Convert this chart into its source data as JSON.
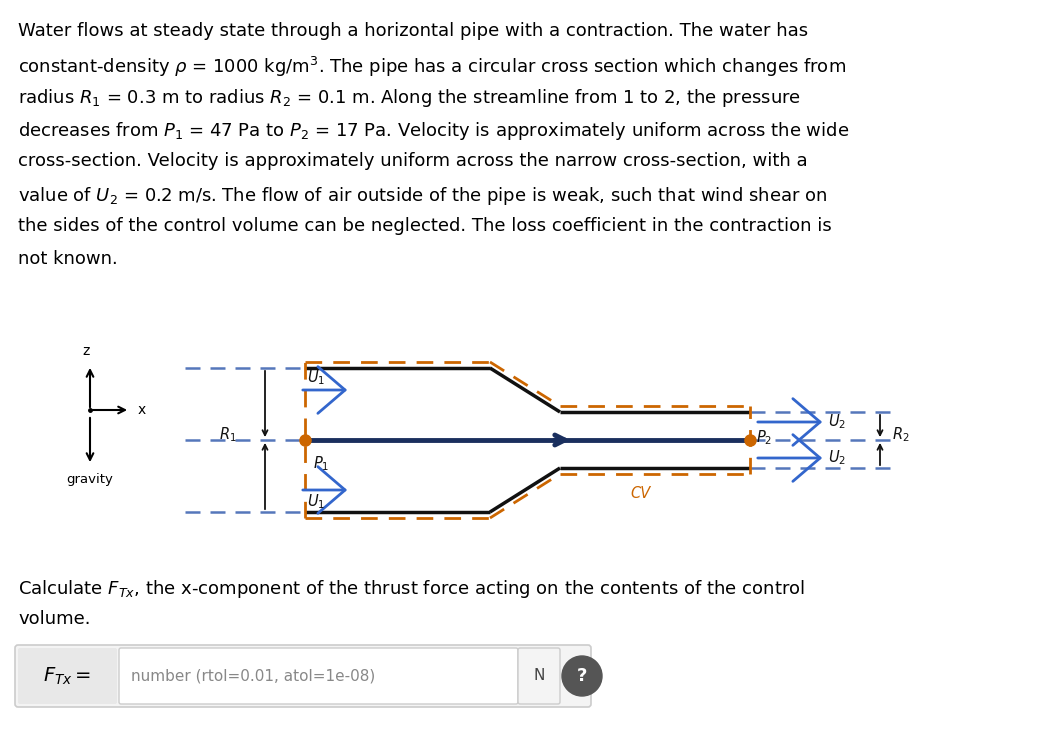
{
  "background_color": "#ffffff",
  "para_lines": [
    "Water flows at steady state through a horizontal pipe with a contraction. The water has",
    "constant-density $\\rho$ = 1000 kg/m$^3$. The pipe has a circular cross section which changes from",
    "radius $R_1$ = 0.3 m to radius $R_2$ = 0.1 m. Along the streamline from 1 to 2, the pressure",
    "decreases from $P_1$ = 47 Pa to $P_2$ = 17 Pa. Velocity is approximately uniform across the wide",
    "cross-section. Velocity is approximately uniform across the narrow cross-section, with a",
    "value of $U_2$ = 0.2 m/s. The flow of air outside of the pipe is weak, such that wind shear on",
    "the sides of the control volume can be neglected. The loss coefficient in the contraction is",
    "not known."
  ],
  "para2_line1": "Calculate $F_{Tx}$, the x-component of the thrust force acting on the contents of the control",
  "para2_line2": "volume.",
  "pipe_color": "#111111",
  "pipe_lw": 2.5,
  "cv_color": "#cc6600",
  "cv_lw": 2.0,
  "dash_color": "#5577bb",
  "dash_lw": 1.8,
  "arrow_color": "#3366cc",
  "stream_color": "#1a2f5e",
  "dot_color": "#cc6600",
  "text_fs": 13.0,
  "diag_fs": 10.5
}
